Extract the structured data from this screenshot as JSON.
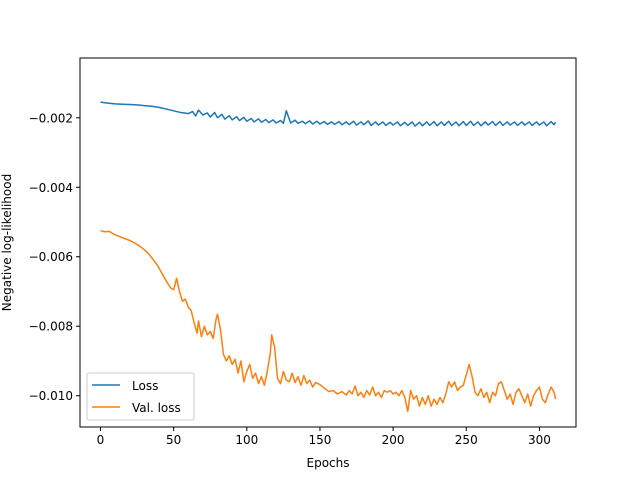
{
  "chart_data": {
    "type": "line",
    "title": "",
    "xlabel": "Epochs",
    "ylabel": "Negative log-likelihood",
    "xlim": [
      -14,
      325
    ],
    "ylim": [
      -0.0109,
      -0.00028
    ],
    "xticks": [
      0,
      50,
      100,
      150,
      200,
      250,
      300
    ],
    "yticks": [
      -0.002,
      -0.004,
      -0.006,
      -0.008,
      -0.01
    ],
    "xtick_labels": [
      "0",
      "50",
      "100",
      "150",
      "200",
      "250",
      "300"
    ],
    "ytick_labels": [
      "−0.002",
      "−0.004",
      "−0.006",
      "−0.008",
      "−0.010"
    ],
    "grid": false,
    "legend_position": "lower left",
    "series": [
      {
        "name": "Loss",
        "color": "#1f77b4",
        "points": [
          [
            0,
            -0.00155
          ],
          [
            5,
            -0.00158
          ],
          [
            10,
            -0.0016
          ],
          [
            15,
            -0.00161
          ],
          [
            20,
            -0.00162
          ],
          [
            25,
            -0.00163
          ],
          [
            30,
            -0.00165
          ],
          [
            35,
            -0.00167
          ],
          [
            40,
            -0.0017
          ],
          [
            45,
            -0.00175
          ],
          [
            50,
            -0.0018
          ],
          [
            55,
            -0.00185
          ],
          [
            60,
            -0.00188
          ],
          [
            63,
            -0.00182
          ],
          [
            65,
            -0.00195
          ],
          [
            67,
            -0.00178
          ],
          [
            70,
            -0.00192
          ],
          [
            73,
            -0.00186
          ],
          [
            75,
            -0.00198
          ],
          [
            78,
            -0.00185
          ],
          [
            80,
            -0.002
          ],
          [
            83,
            -0.0019
          ],
          [
            85,
            -0.00204
          ],
          [
            88,
            -0.00194
          ],
          [
            90,
            -0.00206
          ],
          [
            93,
            -0.00197
          ],
          [
            95,
            -0.00208
          ],
          [
            98,
            -0.00199
          ],
          [
            100,
            -0.0021
          ],
          [
            103,
            -0.00202
          ],
          [
            105,
            -0.00212
          ],
          [
            108,
            -0.00203
          ],
          [
            110,
            -0.00213
          ],
          [
            113,
            -0.00205
          ],
          [
            115,
            -0.00214
          ],
          [
            118,
            -0.00206
          ],
          [
            120,
            -0.00215
          ],
          [
            123,
            -0.00208
          ],
          [
            125,
            -0.00216
          ],
          [
            127,
            -0.0018
          ],
          [
            130,
            -0.00215
          ],
          [
            133,
            -0.00207
          ],
          [
            135,
            -0.00216
          ],
          [
            138,
            -0.0021
          ],
          [
            140,
            -0.00217
          ],
          [
            143,
            -0.00209
          ],
          [
            145,
            -0.00218
          ],
          [
            148,
            -0.0021
          ],
          [
            150,
            -0.00218
          ],
          [
            153,
            -0.00211
          ],
          [
            155,
            -0.00219
          ],
          [
            158,
            -0.00212
          ],
          [
            160,
            -0.00219
          ],
          [
            163,
            -0.00211
          ],
          [
            165,
            -0.0022
          ],
          [
            168,
            -0.00212
          ],
          [
            170,
            -0.0022
          ],
          [
            173,
            -0.0021
          ],
          [
            175,
            -0.00221
          ],
          [
            178,
            -0.00212
          ],
          [
            180,
            -0.0022
          ],
          [
            183,
            -0.00209
          ],
          [
            185,
            -0.00222
          ],
          [
            188,
            -0.00212
          ],
          [
            190,
            -0.00221
          ],
          [
            193,
            -0.00212
          ],
          [
            195,
            -0.00222
          ],
          [
            198,
            -0.00213
          ],
          [
            200,
            -0.00221
          ],
          [
            203,
            -0.00212
          ],
          [
            205,
            -0.00223
          ],
          [
            208,
            -0.00213
          ],
          [
            210,
            -0.00222
          ],
          [
            213,
            -0.00212
          ],
          [
            215,
            -0.00224
          ],
          [
            218,
            -0.00213
          ],
          [
            220,
            -0.00223
          ],
          [
            223,
            -0.00212
          ],
          [
            225,
            -0.00222
          ],
          [
            228,
            -0.00211
          ],
          [
            230,
            -0.00223
          ],
          [
            233,
            -0.00212
          ],
          [
            235,
            -0.00222
          ],
          [
            238,
            -0.0021
          ],
          [
            240,
            -0.00222
          ],
          [
            243,
            -0.00212
          ],
          [
            245,
            -0.00223
          ],
          [
            248,
            -0.00211
          ],
          [
            250,
            -0.00222
          ],
          [
            253,
            -0.0021
          ],
          [
            255,
            -0.00222
          ],
          [
            258,
            -0.00212
          ],
          [
            260,
            -0.00223
          ],
          [
            263,
            -0.00212
          ],
          [
            265,
            -0.00221
          ],
          [
            268,
            -0.00211
          ],
          [
            270,
            -0.00222
          ],
          [
            273,
            -0.00211
          ],
          [
            275,
            -0.00222
          ],
          [
            278,
            -0.00212
          ],
          [
            280,
            -0.00221
          ],
          [
            283,
            -0.00212
          ],
          [
            285,
            -0.00222
          ],
          [
            288,
            -0.00212
          ],
          [
            290,
            -0.00221
          ],
          [
            293,
            -0.00212
          ],
          [
            295,
            -0.00222
          ],
          [
            298,
            -0.00212
          ],
          [
            300,
            -0.00221
          ],
          [
            303,
            -0.00212
          ],
          [
            305,
            -0.00223
          ],
          [
            308,
            -0.00211
          ],
          [
            310,
            -0.0022
          ],
          [
            311,
            -0.00213
          ]
        ]
      },
      {
        "name": "Val. loss",
        "color": "#ff7f0e",
        "points": [
          [
            0,
            -0.00525
          ],
          [
            3,
            -0.00528
          ],
          [
            6,
            -0.00527
          ],
          [
            9,
            -0.00535
          ],
          [
            12,
            -0.0054
          ],
          [
            15,
            -0.00545
          ],
          [
            18,
            -0.0055
          ],
          [
            21,
            -0.00555
          ],
          [
            24,
            -0.00562
          ],
          [
            27,
            -0.0057
          ],
          [
            30,
            -0.0058
          ],
          [
            33,
            -0.00592
          ],
          [
            36,
            -0.00608
          ],
          [
            39,
            -0.00625
          ],
          [
            42,
            -0.00648
          ],
          [
            45,
            -0.0067
          ],
          [
            48,
            -0.0069
          ],
          [
            50,
            -0.00695
          ],
          [
            52,
            -0.00662
          ],
          [
            54,
            -0.007
          ],
          [
            56,
            -0.00728
          ],
          [
            58,
            -0.00722
          ],
          [
            60,
            -0.00745
          ],
          [
            62,
            -0.00755
          ],
          [
            64,
            -0.0079
          ],
          [
            66,
            -0.0082
          ],
          [
            67,
            -0.00785
          ],
          [
            69,
            -0.0083
          ],
          [
            71,
            -0.008
          ],
          [
            73,
            -0.00825
          ],
          [
            75,
            -0.00815
          ],
          [
            77,
            -0.00835
          ],
          [
            79,
            -0.0078
          ],
          [
            80,
            -0.00765
          ],
          [
            82,
            -0.0081
          ],
          [
            84,
            -0.0088
          ],
          [
            86,
            -0.009
          ],
          [
            88,
            -0.00885
          ],
          [
            90,
            -0.0091
          ],
          [
            92,
            -0.00895
          ],
          [
            94,
            -0.00935
          ],
          [
            96,
            -0.009
          ],
          [
            98,
            -0.0096
          ],
          [
            100,
            -0.0093
          ],
          [
            102,
            -0.0091
          ],
          [
            104,
            -0.0095
          ],
          [
            106,
            -0.00935
          ],
          [
            108,
            -0.00965
          ],
          [
            110,
            -0.00945
          ],
          [
            112,
            -0.0097
          ],
          [
            114,
            -0.0093
          ],
          [
            116,
            -0.0088
          ],
          [
            117,
            -0.00825
          ],
          [
            119,
            -0.0086
          ],
          [
            121,
            -0.0095
          ],
          [
            123,
            -0.00965
          ],
          [
            125,
            -0.0093
          ],
          [
            127,
            -0.00955
          ],
          [
            129,
            -0.0096
          ],
          [
            131,
            -0.00935
          ],
          [
            133,
            -0.00962
          ],
          [
            135,
            -0.00945
          ],
          [
            137,
            -0.0097
          ],
          [
            139,
            -0.00942
          ],
          [
            141,
            -0.00965
          ],
          [
            143,
            -0.00955
          ],
          [
            145,
            -0.00975
          ],
          [
            147,
            -0.00962
          ],
          [
            150,
            -0.00968
          ],
          [
            153,
            -0.00978
          ],
          [
            156,
            -0.00988
          ],
          [
            159,
            -0.00985
          ],
          [
            162,
            -0.00995
          ],
          [
            165,
            -0.00988
          ],
          [
            168,
            -0.00998
          ],
          [
            170,
            -0.00985
          ],
          [
            172,
            -0.00995
          ],
          [
            174,
            -0.00972
          ],
          [
            176,
            -0.01
          ],
          [
            178,
            -0.0099
          ],
          [
            180,
            -0.01005
          ],
          [
            182,
            -0.00985
          ],
          [
            184,
            -0.00998
          ],
          [
            186,
            -0.00975
          ],
          [
            188,
            -0.01
          ],
          [
            190,
            -0.0099
          ],
          [
            192,
            -0.01005
          ],
          [
            194,
            -0.00985
          ],
          [
            196,
            -0.0099
          ],
          [
            198,
            -0.00985
          ],
          [
            200,
            -0.00995
          ],
          [
            202,
            -0.0099
          ],
          [
            204,
            -0.01
          ],
          [
            206,
            -0.00985
          ],
          [
            208,
            -0.01005
          ],
          [
            210,
            -0.01045
          ],
          [
            212,
            -0.00985
          ],
          [
            214,
            -0.0101
          ],
          [
            216,
            -0.01
          ],
          [
            218,
            -0.0103
          ],
          [
            220,
            -0.01005
          ],
          [
            222,
            -0.01025
          ],
          [
            224,
            -0.01
          ],
          [
            226,
            -0.0103
          ],
          [
            228,
            -0.0101
          ],
          [
            230,
            -0.01025
          ],
          [
            232,
            -0.01005
          ],
          [
            234,
            -0.0102
          ],
          [
            236,
            -0.00995
          ],
          [
            238,
            -0.0096
          ],
          [
            240,
            -0.00975
          ],
          [
            242,
            -0.0096
          ],
          [
            244,
            -0.00985
          ],
          [
            246,
            -0.00975
          ],
          [
            248,
            -0.0097
          ],
          [
            250,
            -0.0094
          ],
          [
            252,
            -0.0091
          ],
          [
            254,
            -0.00945
          ],
          [
            256,
            -0.0099
          ],
          [
            258,
            -0.01
          ],
          [
            260,
            -0.0098
          ],
          [
            262,
            -0.01005
          ],
          [
            264,
            -0.0099
          ],
          [
            266,
            -0.0102
          ],
          [
            268,
            -0.0099
          ],
          [
            270,
            -0.01
          ],
          [
            272,
            -0.00965
          ],
          [
            274,
            -0.0096
          ],
          [
            276,
            -0.00985
          ],
          [
            278,
            -0.0101
          ],
          [
            280,
            -0.00995
          ],
          [
            282,
            -0.01025
          ],
          [
            284,
            -0.0099
          ],
          [
            286,
            -0.0098
          ],
          [
            288,
            -0.01
          ],
          [
            290,
            -0.0102
          ],
          [
            292,
            -0.00995
          ],
          [
            294,
            -0.0103
          ],
          [
            296,
            -0.01
          ],
          [
            298,
            -0.00985
          ],
          [
            300,
            -0.00975
          ],
          [
            302,
            -0.0101
          ],
          [
            304,
            -0.0102
          ],
          [
            306,
            -0.00995
          ],
          [
            308,
            -0.00975
          ],
          [
            310,
            -0.0099
          ],
          [
            311,
            -0.0101
          ]
        ]
      }
    ]
  }
}
